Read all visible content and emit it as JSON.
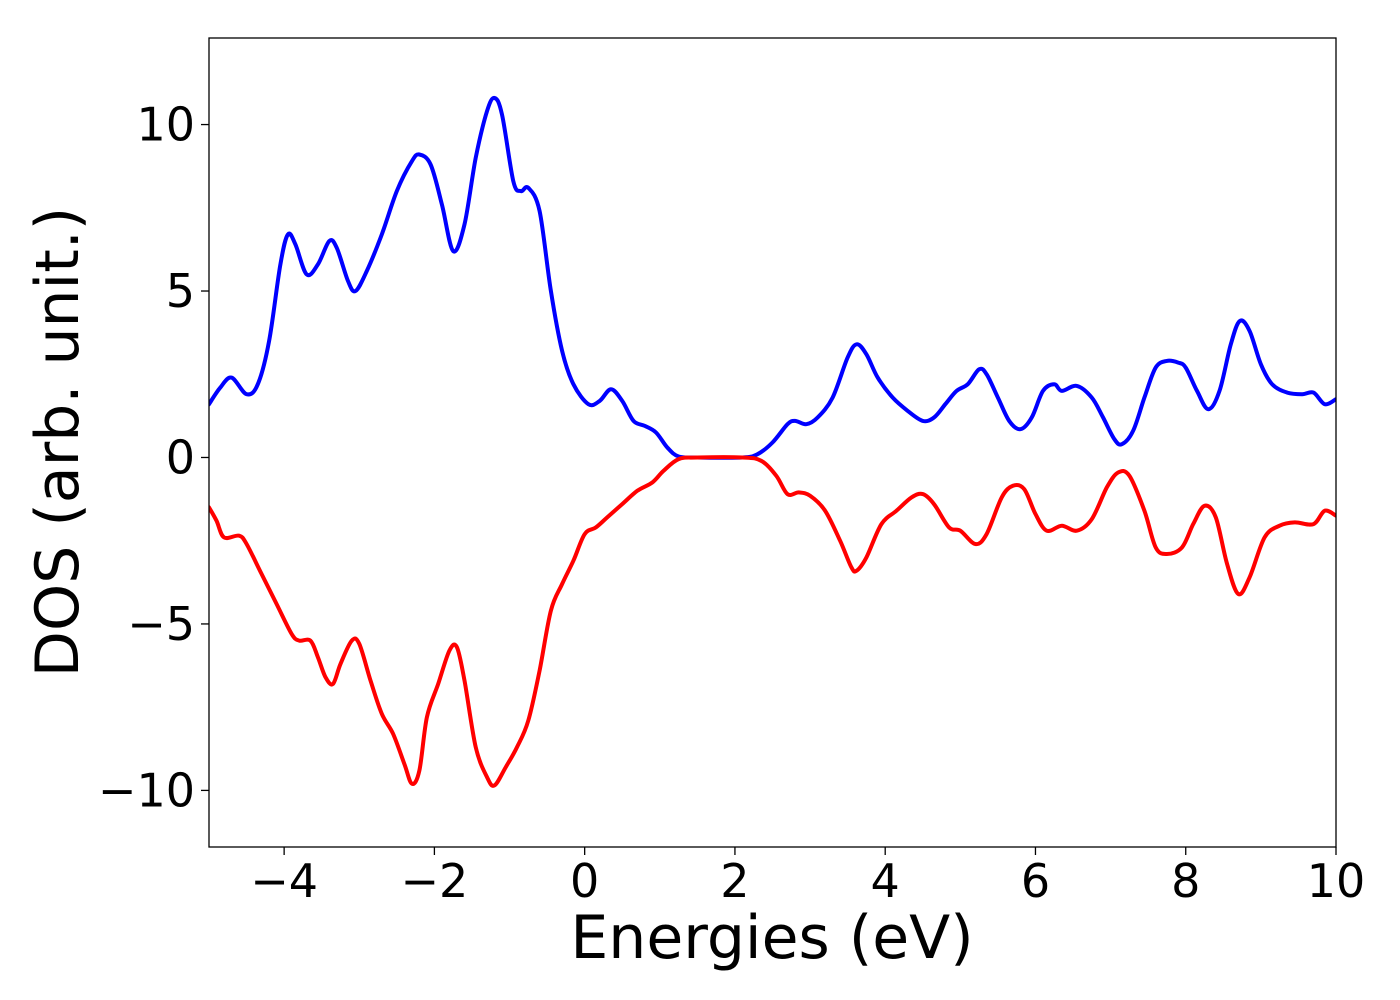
{
  "chart_data": {
    "type": "line",
    "title": "",
    "xlabel": "Energies (eV)",
    "ylabel": "DOS (arb. unit.)",
    "xlim": [
      -5,
      10
    ],
    "ylim": [
      -11.7,
      12.6
    ],
    "grid": false,
    "xticks": [
      -4,
      -2,
      0,
      2,
      4,
      6,
      8,
      10
    ],
    "xtick_labels": [
      "−4",
      "−2",
      "0",
      "2",
      "4",
      "6",
      "8",
      "10"
    ],
    "yticks": [
      -10,
      -5,
      0,
      5,
      10
    ],
    "ytick_labels": [
      "−10",
      "−5",
      "0",
      "5",
      "10"
    ],
    "series": [
      {
        "color": "#0000ff",
        "points": [
          [
            -5.0,
            1.6
          ],
          [
            -4.85,
            2.1
          ],
          [
            -4.7,
            2.4
          ],
          [
            -4.5,
            1.9
          ],
          [
            -4.35,
            2.2
          ],
          [
            -4.2,
            3.5
          ],
          [
            -4.05,
            5.8
          ],
          [
            -3.95,
            6.7
          ],
          [
            -3.85,
            6.4
          ],
          [
            -3.7,
            5.5
          ],
          [
            -3.55,
            5.8
          ],
          [
            -3.4,
            6.5
          ],
          [
            -3.3,
            6.3
          ],
          [
            -3.15,
            5.3
          ],
          [
            -3.05,
            5.0
          ],
          [
            -2.9,
            5.6
          ],
          [
            -2.7,
            6.7
          ],
          [
            -2.5,
            8.0
          ],
          [
            -2.3,
            8.9
          ],
          [
            -2.2,
            9.1
          ],
          [
            -2.05,
            8.8
          ],
          [
            -1.9,
            7.6
          ],
          [
            -1.75,
            6.2
          ],
          [
            -1.6,
            7.0
          ],
          [
            -1.45,
            9.0
          ],
          [
            -1.3,
            10.4
          ],
          [
            -1.2,
            10.8
          ],
          [
            -1.1,
            10.3
          ],
          [
            -0.95,
            8.3
          ],
          [
            -0.85,
            8.0
          ],
          [
            -0.75,
            8.1
          ],
          [
            -0.6,
            7.4
          ],
          [
            -0.45,
            5.0
          ],
          [
            -0.3,
            3.2
          ],
          [
            -0.15,
            2.2
          ],
          [
            0.05,
            1.6
          ],
          [
            0.2,
            1.7
          ],
          [
            0.35,
            2.05
          ],
          [
            0.5,
            1.7
          ],
          [
            0.65,
            1.1
          ],
          [
            0.8,
            0.95
          ],
          [
            0.95,
            0.75
          ],
          [
            1.1,
            0.3
          ],
          [
            1.25,
            0.03
          ],
          [
            1.5,
            0.0
          ],
          [
            2.1,
            0.0
          ],
          [
            2.3,
            0.1
          ],
          [
            2.5,
            0.45
          ],
          [
            2.7,
            1.0
          ],
          [
            2.8,
            1.1
          ],
          [
            2.95,
            1.0
          ],
          [
            3.1,
            1.2
          ],
          [
            3.3,
            1.8
          ],
          [
            3.5,
            3.0
          ],
          [
            3.62,
            3.4
          ],
          [
            3.75,
            3.1
          ],
          [
            3.9,
            2.4
          ],
          [
            4.1,
            1.8
          ],
          [
            4.3,
            1.4
          ],
          [
            4.5,
            1.1
          ],
          [
            4.65,
            1.2
          ],
          [
            4.8,
            1.6
          ],
          [
            4.95,
            2.0
          ],
          [
            5.1,
            2.2
          ],
          [
            5.25,
            2.65
          ],
          [
            5.35,
            2.5
          ],
          [
            5.5,
            1.8
          ],
          [
            5.65,
            1.1
          ],
          [
            5.8,
            0.85
          ],
          [
            5.95,
            1.2
          ],
          [
            6.1,
            2.0
          ],
          [
            6.25,
            2.2
          ],
          [
            6.35,
            2.0
          ],
          [
            6.55,
            2.15
          ],
          [
            6.75,
            1.8
          ],
          [
            6.9,
            1.2
          ],
          [
            7.05,
            0.55
          ],
          [
            7.15,
            0.4
          ],
          [
            7.3,
            0.8
          ],
          [
            7.45,
            1.8
          ],
          [
            7.6,
            2.7
          ],
          [
            7.75,
            2.9
          ],
          [
            7.9,
            2.85
          ],
          [
            8.0,
            2.7
          ],
          [
            8.15,
            2.0
          ],
          [
            8.3,
            1.45
          ],
          [
            8.45,
            2.0
          ],
          [
            8.6,
            3.4
          ],
          [
            8.72,
            4.1
          ],
          [
            8.85,
            3.8
          ],
          [
            9.0,
            2.8
          ],
          [
            9.15,
            2.2
          ],
          [
            9.35,
            1.95
          ],
          [
            9.55,
            1.9
          ],
          [
            9.7,
            1.95
          ],
          [
            9.85,
            1.6
          ],
          [
            10.0,
            1.75
          ]
        ]
      },
      {
        "color": "#ff0000",
        "points": [
          [
            -5.0,
            -1.5
          ],
          [
            -4.9,
            -1.9
          ],
          [
            -4.8,
            -2.4
          ],
          [
            -4.6,
            -2.35
          ],
          [
            -4.5,
            -2.6
          ],
          [
            -4.3,
            -3.5
          ],
          [
            -4.1,
            -4.4
          ],
          [
            -3.9,
            -5.3
          ],
          [
            -3.8,
            -5.5
          ],
          [
            -3.65,
            -5.5
          ],
          [
            -3.55,
            -6.0
          ],
          [
            -3.45,
            -6.6
          ],
          [
            -3.35,
            -6.8
          ],
          [
            -3.25,
            -6.2
          ],
          [
            -3.1,
            -5.5
          ],
          [
            -3.0,
            -5.6
          ],
          [
            -2.85,
            -6.7
          ],
          [
            -2.7,
            -7.7
          ],
          [
            -2.55,
            -8.3
          ],
          [
            -2.4,
            -9.2
          ],
          [
            -2.3,
            -9.8
          ],
          [
            -2.2,
            -9.4
          ],
          [
            -2.1,
            -7.8
          ],
          [
            -1.95,
            -6.8
          ],
          [
            -1.8,
            -5.8
          ],
          [
            -1.7,
            -5.7
          ],
          [
            -1.6,
            -6.7
          ],
          [
            -1.45,
            -8.7
          ],
          [
            -1.3,
            -9.6
          ],
          [
            -1.2,
            -9.85
          ],
          [
            -1.05,
            -9.3
          ],
          [
            -0.9,
            -8.7
          ],
          [
            -0.75,
            -7.9
          ],
          [
            -0.6,
            -6.4
          ],
          [
            -0.45,
            -4.6
          ],
          [
            -0.3,
            -3.8
          ],
          [
            -0.15,
            -3.1
          ],
          [
            0.0,
            -2.3
          ],
          [
            0.15,
            -2.1
          ],
          [
            0.3,
            -1.8
          ],
          [
            0.5,
            -1.4
          ],
          [
            0.7,
            -1.0
          ],
          [
            0.9,
            -0.75
          ],
          [
            1.05,
            -0.4
          ],
          [
            1.25,
            -0.05
          ],
          [
            1.5,
            0.0
          ],
          [
            2.1,
            0.0
          ],
          [
            2.35,
            -0.1
          ],
          [
            2.55,
            -0.55
          ],
          [
            2.7,
            -1.1
          ],
          [
            2.85,
            -1.05
          ],
          [
            3.0,
            -1.15
          ],
          [
            3.2,
            -1.6
          ],
          [
            3.4,
            -2.5
          ],
          [
            3.55,
            -3.3
          ],
          [
            3.62,
            -3.4
          ],
          [
            3.75,
            -3.0
          ],
          [
            3.95,
            -2.0
          ],
          [
            4.15,
            -1.6
          ],
          [
            4.35,
            -1.2
          ],
          [
            4.5,
            -1.1
          ],
          [
            4.65,
            -1.4
          ],
          [
            4.85,
            -2.1
          ],
          [
            5.0,
            -2.2
          ],
          [
            5.2,
            -2.6
          ],
          [
            5.35,
            -2.3
          ],
          [
            5.55,
            -1.2
          ],
          [
            5.7,
            -0.85
          ],
          [
            5.85,
            -0.95
          ],
          [
            6.0,
            -1.7
          ],
          [
            6.15,
            -2.2
          ],
          [
            6.35,
            -2.05
          ],
          [
            6.55,
            -2.2
          ],
          [
            6.75,
            -1.85
          ],
          [
            6.95,
            -0.9
          ],
          [
            7.1,
            -0.45
          ],
          [
            7.25,
            -0.55
          ],
          [
            7.45,
            -1.6
          ],
          [
            7.6,
            -2.7
          ],
          [
            7.75,
            -2.9
          ],
          [
            7.95,
            -2.7
          ],
          [
            8.1,
            -2.0
          ],
          [
            8.25,
            -1.45
          ],
          [
            8.4,
            -1.8
          ],
          [
            8.55,
            -3.2
          ],
          [
            8.7,
            -4.1
          ],
          [
            8.85,
            -3.6
          ],
          [
            9.05,
            -2.4
          ],
          [
            9.25,
            -2.05
          ],
          [
            9.45,
            -1.95
          ],
          [
            9.7,
            -2.0
          ],
          [
            9.85,
            -1.6
          ],
          [
            10.0,
            -1.75
          ]
        ]
      }
    ]
  }
}
